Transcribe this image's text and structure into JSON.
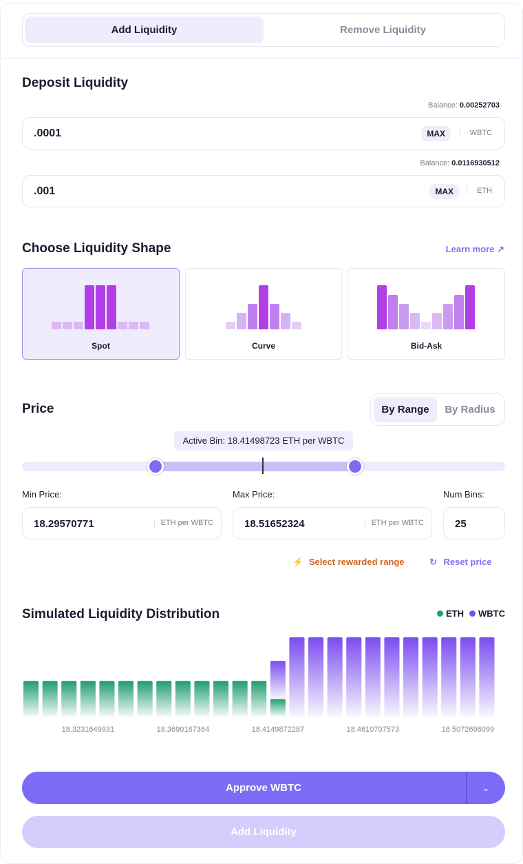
{
  "tabs": [
    "Add Liquidity",
    "Remove Liquidity"
  ],
  "deposit": {
    "title": "Deposit Liquidity",
    "inputs": [
      {
        "balance_label": "Balance:",
        "balance": "0.00252703",
        "amount": ".0001",
        "max": "MAX",
        "token": "WBTC"
      },
      {
        "balance_label": "Balance:",
        "balance": "0.0116930512",
        "amount": ".001",
        "max": "MAX",
        "token": "ETH"
      }
    ]
  },
  "shape": {
    "title": "Choose Liquidity Shape",
    "learn_more": "Learn more",
    "options": [
      "Spot",
      "Curve",
      "Bid-Ask"
    ]
  },
  "price": {
    "title": "Price",
    "modes": [
      "By Range",
      "By Radius"
    ],
    "active_bin": "Active Bin: 18.41498723 ETH per WBTC",
    "min_label": "Min Price:",
    "min_value": "18.29570771",
    "max_label": "Max Price:",
    "max_value": "18.51652324",
    "unit": "ETH per WBTC",
    "num_bins_label": "Num Bins:",
    "num_bins": "25",
    "rewarded": "Select rewarded range",
    "reset": "Reset price"
  },
  "distribution": {
    "title": "Simulated Liquidity Distribution",
    "series": [
      {
        "name": "ETH",
        "color": "#1f9d6f",
        "values": [
          0.45,
          0.45,
          0.45,
          0.45,
          0.45,
          0.45,
          0.45,
          0.45,
          0.45,
          0.45,
          0.45,
          0.45,
          0.45,
          0.22,
          0,
          0,
          0,
          0,
          0,
          0,
          0,
          0,
          0,
          0,
          0
        ]
      },
      {
        "name": "WBTC",
        "color": "#7b4cf0",
        "values": [
          0,
          0,
          0,
          0,
          0,
          0,
          0,
          0,
          0,
          0,
          0,
          0,
          0,
          0.5,
          1,
          1,
          1,
          1,
          1,
          1,
          1,
          1,
          1,
          1,
          1
        ]
      }
    ],
    "x_labels": [
      null,
      null,
      null,
      "18.3231649931",
      null,
      null,
      null,
      null,
      "18.3690187364",
      null,
      null,
      null,
      null,
      "18.4149872287",
      null,
      null,
      null,
      null,
      "18.4610707573",
      null,
      null,
      null,
      null,
      "18.5072696099",
      null
    ]
  },
  "buttons": {
    "approve": "Approve WBTC",
    "add": "Add Liquidity"
  }
}
